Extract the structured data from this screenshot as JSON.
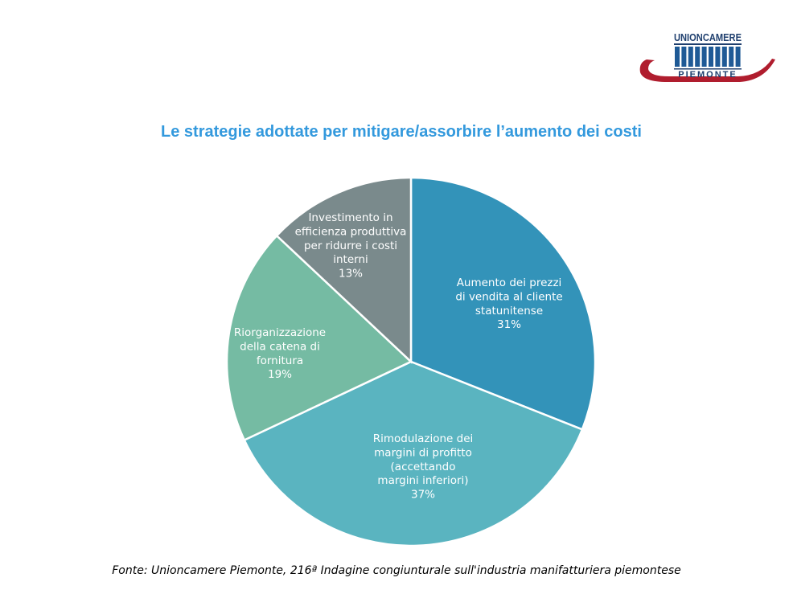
{
  "logo": {
    "top_text": "UNIONCAMERE",
    "bottom_text": "PIEMONTE",
    "colors": {
      "blue": "#1f5a96",
      "red": "#b01d2e"
    }
  },
  "chart_data": {
    "type": "pie",
    "title": "Le strategie adottate per mitigare/assorbire l’aumento dei costi",
    "start_angle_deg": 0,
    "direction": "clockwise",
    "slices": [
      {
        "label_lines": [
          "Aumento dei prezzi",
          "di vendita al cliente",
          "statunitense"
        ],
        "value": 31,
        "value_label": "31%",
        "color": "#3393b9"
      },
      {
        "label_lines": [
          "Rimodulazione dei",
          "margini di profitto",
          "(accettando",
          "margini inferiori)"
        ],
        "value": 37,
        "value_label": "37%",
        "color": "#5ab4c0"
      },
      {
        "label_lines": [
          "Riorganizzazione",
          "della catena di",
          "fornitura"
        ],
        "value": 19,
        "value_label": "19%",
        "color": "#75bba3"
      },
      {
        "label_lines": [
          "Investimento in",
          "efficienza produttiva",
          "per ridurre i costi",
          "interni"
        ],
        "value": 13,
        "value_label": "13%",
        "color": "#7a8a8c"
      }
    ]
  },
  "source": "Fonte: Unioncamere Piemonte, 216ª Indagine congiunturale sull'industria manifatturiera piemontese"
}
